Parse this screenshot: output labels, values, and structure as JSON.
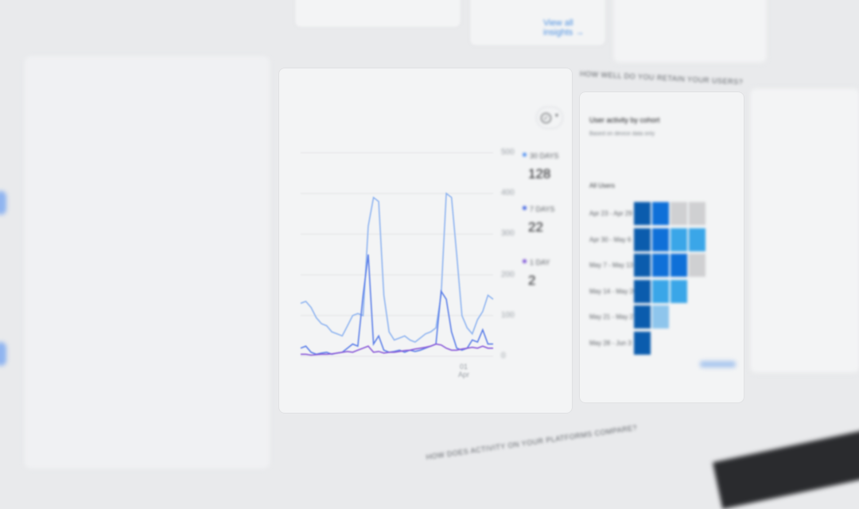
{
  "top_cards": {
    "insights_link": "View all insights →"
  },
  "sections": {
    "retention_heading": "HOW WELL DO YOU RETAIN YOUR USERS?",
    "platforms_heading": "HOW DOES ACTIVITY ON YOUR PLATFORMS COMPARE?"
  },
  "activity_card": {
    "filter_icon": "check-circle-icon",
    "legend": [
      {
        "label": "30 DAYS",
        "value": "128",
        "color": "#4f8ff0"
      },
      {
        "label": "7 DAYS",
        "value": "22",
        "color": "#3b5fe0"
      },
      {
        "label": "1 DAY",
        "value": "2",
        "color": "#7a4fd6"
      }
    ]
  },
  "chart_data": {
    "type": "line",
    "ylim": [
      0,
      500
    ],
    "yticks": [
      "500",
      "400",
      "300",
      "200",
      "100",
      "0"
    ],
    "xticks": [
      "01 Apr"
    ],
    "grid": true,
    "legend_placement": "right",
    "series": [
      {
        "name": "30 DAYS",
        "color": "#8fb4f0",
        "values": [
          130,
          135,
          120,
          95,
          80,
          75,
          60,
          55,
          50,
          75,
          100,
          105,
          100,
          320,
          390,
          380,
          150,
          60,
          40,
          45,
          50,
          40,
          35,
          45,
          55,
          60,
          70,
          150,
          400,
          390,
          250,
          100,
          70,
          55,
          90,
          110,
          150,
          140
        ]
      },
      {
        "name": "7 DAYS",
        "color": "#5c7fe8",
        "values": [
          20,
          25,
          10,
          5,
          8,
          10,
          5,
          8,
          10,
          20,
          30,
          25,
          150,
          250,
          30,
          50,
          15,
          10,
          12,
          15,
          10,
          15,
          12,
          15,
          20,
          25,
          30,
          160,
          140,
          60,
          20,
          15,
          20,
          40,
          35,
          65,
          30,
          30
        ]
      },
      {
        "name": "1 DAY",
        "color": "#8a5ad8",
        "values": [
          5,
          5,
          3,
          4,
          5,
          5,
          6,
          8,
          10,
          12,
          10,
          15,
          20,
          25,
          10,
          12,
          8,
          10,
          10,
          12,
          14,
          15,
          18,
          20,
          22,
          25,
          30,
          28,
          20,
          15,
          15,
          18,
          20,
          22,
          20,
          25,
          20,
          20
        ]
      }
    ]
  },
  "cohort_card": {
    "title": "User activity by cohort",
    "subtitle": "Based on device data only",
    "all_users_label": "All Users",
    "rows": [
      {
        "label": "Apr 23 - Apr 29",
        "cells": [
          "dark",
          "mid",
          "gray",
          "gray"
        ]
      },
      {
        "label": "Apr 30 - May 6",
        "cells": [
          "dark",
          "mid",
          "light",
          "light"
        ]
      },
      {
        "label": "May 7 - May 13",
        "cells": [
          "dark",
          "mid",
          "mid",
          "gray"
        ]
      },
      {
        "label": "May 14 - May 20",
        "cells": [
          "dark",
          "light",
          "light"
        ]
      },
      {
        "label": "May 21 - May 27",
        "cells": [
          "dark",
          "pale"
        ]
      },
      {
        "label": "May 28 - Jun 3",
        "cells": [
          "dark"
        ]
      }
    ],
    "colors": {
      "dark": "#0b5cad",
      "mid": "#0f70d8",
      "light": "#3aa6e8",
      "pale": "#8ec5ec",
      "gray": "#cfd0d2"
    }
  }
}
